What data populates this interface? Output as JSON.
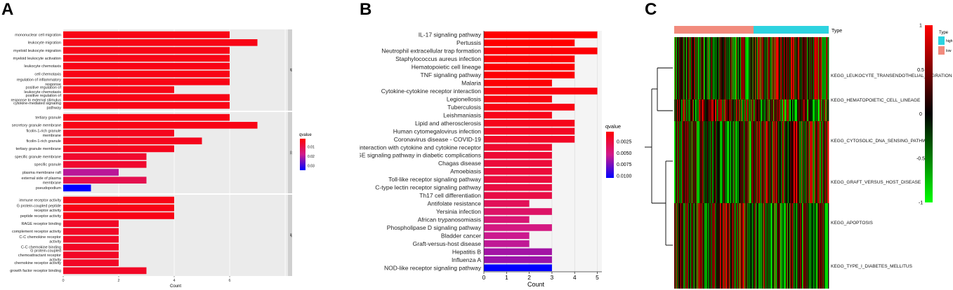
{
  "panels": {
    "a": "A",
    "b": "B",
    "c": "C"
  },
  "colors": {
    "low": "#0000ff",
    "mid": "#d01a8c",
    "high": "#ff0000"
  },
  "chart_data": [
    {
      "type": "bar",
      "orientation": "horizontal",
      "title": "",
      "xlabel": "Count",
      "xlim": [
        0,
        8.1
      ],
      "xticks": [
        "0",
        "2",
        "4",
        "6"
      ],
      "legend": {
        "title": "qvalue",
        "ticks": [
          "0.01",
          "0.02",
          "0.03"
        ],
        "range": [
          0.0015,
          0.035
        ]
      },
      "facets": [
        {
          "name": "BP",
          "items": [
            {
              "label": [
                "mononuclear cell migration"
              ],
              "count": 6,
              "q": 0.004
            },
            {
              "label": [
                "leukocyte migration"
              ],
              "count": 7,
              "q": 0.004
            },
            {
              "label": [
                "myeloid leukocyte migration"
              ],
              "count": 6,
              "q": 0.004
            },
            {
              "label": [
                "myeloid leukocyte activation"
              ],
              "count": 6,
              "q": 0.004
            },
            {
              "label": [
                "leukocyte chemotaxis"
              ],
              "count": 6,
              "q": 0.004
            },
            {
              "label": [
                "cell chemotaxis"
              ],
              "count": 6,
              "q": 0.004
            },
            {
              "label": [
                "regulation of inflammatory",
                "response"
              ],
              "count": 6,
              "q": 0.004
            },
            {
              "label": [
                "positive regulation of",
                "leukocyte chemotaxis"
              ],
              "count": 4,
              "q": 0.004
            },
            {
              "label": [
                "positive regulation of",
                "response to external stimulus"
              ],
              "count": 6,
              "q": 0.004
            },
            {
              "label": [
                "cytokine-mediated signaling",
                "pathway"
              ],
              "count": 6,
              "q": 0.004
            }
          ]
        },
        {
          "name": "CC",
          "items": [
            {
              "label": [
                "tertiary granule"
              ],
              "count": 6,
              "q": 0.004
            },
            {
              "label": [
                "secretory granule membrane"
              ],
              "count": 7,
              "q": 0.004
            },
            {
              "label": [
                "ficolin-1-rich granule",
                "membrane"
              ],
              "count": 4,
              "q": 0.005
            },
            {
              "label": [
                "ficolin-1-rich granule"
              ],
              "count": 5,
              "q": 0.005
            },
            {
              "label": [
                "tertiary granule membrane"
              ],
              "count": 4,
              "q": 0.005
            },
            {
              "label": [
                "specific granule membrane"
              ],
              "count": 3,
              "q": 0.007
            },
            {
              "label": [
                "specific granule"
              ],
              "count": 3,
              "q": 0.007
            },
            {
              "label": [
                "plasma membrane raft"
              ],
              "count": 2,
              "q": 0.02
            },
            {
              "label": [
                "external side of plasma",
                "membrane"
              ],
              "count": 3,
              "q": 0.011
            },
            {
              "label": [
                "pseudopodium"
              ],
              "count": 1,
              "q": 0.035
            }
          ]
        },
        {
          "name": "MF",
          "items": [
            {
              "label": [
                "immune receptor activity"
              ],
              "count": 4,
              "q": 0.004
            },
            {
              "label": [
                "G protein-coupled peptide",
                "receptor activity"
              ],
              "count": 4,
              "q": 0.004
            },
            {
              "label": [
                "peptide receptor activity"
              ],
              "count": 4,
              "q": 0.004
            },
            {
              "label": [
                "RAGE receptor binding"
              ],
              "count": 2,
              "q": 0.006
            },
            {
              "label": [
                "complement receptor activity"
              ],
              "count": 2,
              "q": 0.006
            },
            {
              "label": [
                "C-C chemokine receptor",
                "activity"
              ],
              "count": 2,
              "q": 0.006
            },
            {
              "label": [
                "C-C chemokine binding"
              ],
              "count": 2,
              "q": 0.006
            },
            {
              "label": [
                "G protein-coupled",
                "chemoattractant receptor",
                "activity"
              ],
              "count": 2,
              "q": 0.006
            },
            {
              "label": [
                "chemokine receptor activity"
              ],
              "count": 2,
              "q": 0.006
            },
            {
              "label": [
                "growth factor receptor binding"
              ],
              "count": 3,
              "q": 0.006
            }
          ]
        }
      ]
    },
    {
      "type": "bar",
      "orientation": "horizontal",
      "title": "",
      "xlabel": "Count",
      "xlim": [
        0,
        5.2
      ],
      "xticks": [
        "0",
        "1",
        "2",
        "3",
        "4",
        "5"
      ],
      "legend": {
        "title": "qvalue",
        "ticks": [
          "0.0025",
          "0.0050",
          "0.0075",
          "0.0100"
        ],
        "range": [
          0.0003,
          0.0105
        ]
      },
      "categories": [
        "IL-17 signaling pathway",
        "Pertussis",
        "Neutrophil extracellular trap formation",
        "Staphylococcus aureus infection",
        "Hematopoietic cell lineage",
        "TNF signaling pathway",
        "Malaria",
        "Cytokine-cytokine receptor interaction",
        "Legionellosis",
        "Tuberculosis",
        "Leishmaniasis",
        "Lipid and atherosclerosis",
        "Human cytomegalovirus infection",
        "Coronavirus disease - COVID-19",
        "Viral protein interaction with cytokine and cytokine receptor",
        "AGE-RAGE signaling pathway in diabetic complications",
        "Chagas disease",
        "Amoebiasis",
        "Toll-like receptor signaling pathway",
        "C-type lectin receptor signaling pathway",
        "Th17 cell differentiation",
        "Antifolate resistance",
        "Yersinia infection",
        "African trypanosomiasis",
        "Phospholipase D signaling pathway",
        "Bladder cancer",
        "Graft-versus-host disease",
        "Hepatitis B",
        "Influenza A",
        "NOD-like receptor signaling pathway"
      ],
      "values": [
        5,
        4,
        5,
        4,
        4,
        4,
        3,
        5,
        3,
        4,
        3,
        4,
        4,
        4,
        3,
        3,
        3,
        3,
        3,
        3,
        3,
        2,
        3,
        2,
        3,
        2,
        2,
        3,
        3,
        3
      ],
      "qvalues": [
        0.0003,
        0.0003,
        0.0005,
        0.0005,
        0.0005,
        0.0005,
        0.0005,
        0.0008,
        0.0009,
        0.001,
        0.0012,
        0.0013,
        0.0016,
        0.0017,
        0.002,
        0.0022,
        0.0024,
        0.0024,
        0.0025,
        0.0027,
        0.0028,
        0.0035,
        0.004,
        0.0045,
        0.005,
        0.0055,
        0.0058,
        0.0065,
        0.0067,
        0.0105
      ]
    },
    {
      "type": "heatmap",
      "rows": [
        "KEGG_LEUKOCYTE_TRANSENDOTHELIAL_MIGRATION",
        "KEGG_HEMATOPOIETIC_CELL_LINEAGE",
        "KEGG_CYTOSOLIC_DNA_SENSING_PATHWAY",
        "KEGG_GRAFT_VERSUS_HOST_DISEASE",
        "KEGG_APOPTOSIS",
        "KEGG_TYPE_I_DIABETES_MELLITUS"
      ],
      "annotation": {
        "title": "Type",
        "groups": [
          "high",
          "low"
        ],
        "colors": {
          "high": "#2dd3e0",
          "low": "#f28b7d"
        }
      },
      "colorbar": {
        "ticks": [
          "1",
          "0.5",
          "0",
          "-0.5",
          "-1"
        ],
        "range": [
          -1,
          1
        ],
        "colors": {
          "low": "#00ff00",
          "mid": "#000000",
          "high": "#ff0000"
        }
      }
    }
  ]
}
